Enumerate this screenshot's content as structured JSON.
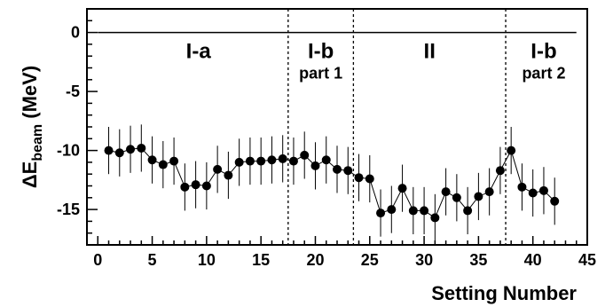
{
  "chart_data": {
    "type": "scatter",
    "title": "",
    "xlabel": "Setting Number",
    "ylabel_main": "ΔE",
    "ylabel_sub": "beam",
    "ylabel_unit": " (MeV)",
    "xlim": [
      -1,
      45
    ],
    "ylim": [
      -18,
      2
    ],
    "xticks": [
      0,
      5,
      10,
      15,
      20,
      25,
      30,
      35,
      40,
      45
    ],
    "xtick_labels": [
      "0",
      "5",
      "10",
      "15",
      "20",
      "25",
      "30",
      "35",
      "40",
      "45"
    ],
    "yticks": [
      0,
      -5,
      -10,
      -15
    ],
    "ytick_labels": [
      "0",
      "-5",
      "-10",
      "-15"
    ],
    "grid": false,
    "reference_line": 0,
    "dividers": [
      17.5,
      23.5,
      37.5
    ],
    "regions": [
      {
        "label": "I-a",
        "sub": "",
        "x": 9.25,
        "y": -1.5
      },
      {
        "label": "I-b",
        "sub": "part 1",
        "x": 20.5,
        "y": -1.5
      },
      {
        "label": "II",
        "sub": "",
        "x": 30.5,
        "y": -1.5
      },
      {
        "label": "I-b",
        "sub": "part 2",
        "x": 41,
        "y": -1.5
      }
    ],
    "series": [
      {
        "connected": true,
        "x": [
          1,
          2,
          3,
          4,
          5,
          6,
          7,
          8,
          9,
          10,
          11,
          12,
          13,
          14,
          15,
          16,
          17,
          18,
          19,
          20,
          21,
          22,
          23,
          24,
          25,
          26,
          27,
          28,
          29,
          30,
          31,
          32,
          33,
          34,
          35,
          36,
          37,
          38,
          39,
          40,
          41,
          42
        ],
        "y": [
          -10.0,
          -10.2,
          -9.9,
          -9.8,
          -10.8,
          -11.2,
          -10.9,
          -13.1,
          -12.9,
          -13.0,
          -11.6,
          -12.1,
          -11.0,
          -10.9,
          -10.9,
          -10.8,
          -10.7,
          -10.9,
          -10.4,
          -11.3,
          -10.8,
          -11.6,
          -11.7,
          -12.3,
          -12.4,
          -15.3,
          -15.0,
          -13.2,
          -15.1,
          -15.1,
          -15.7,
          -13.5,
          -14.0,
          -15.1,
          -13.9,
          -13.5,
          -11.7,
          -10.0,
          -13.1,
          -13.6,
          -13.4,
          -14.3
        ],
        "yerr": [
          2.0,
          2.0,
          2.0,
          2.0,
          2.0,
          2.0,
          2.0,
          2.0,
          2.0,
          2.0,
          2.0,
          2.0,
          2.0,
          2.0,
          2.0,
          2.0,
          2.0,
          2.0,
          2.0,
          2.0,
          2.0,
          2.0,
          2.0,
          2.0,
          2.0,
          2.0,
          2.0,
          2.0,
          2.0,
          2.0,
          2.0,
          2.0,
          2.0,
          2.0,
          2.0,
          2.0,
          2.0,
          2.0,
          2.0,
          2.0,
          2.0,
          2.0
        ]
      }
    ]
  }
}
